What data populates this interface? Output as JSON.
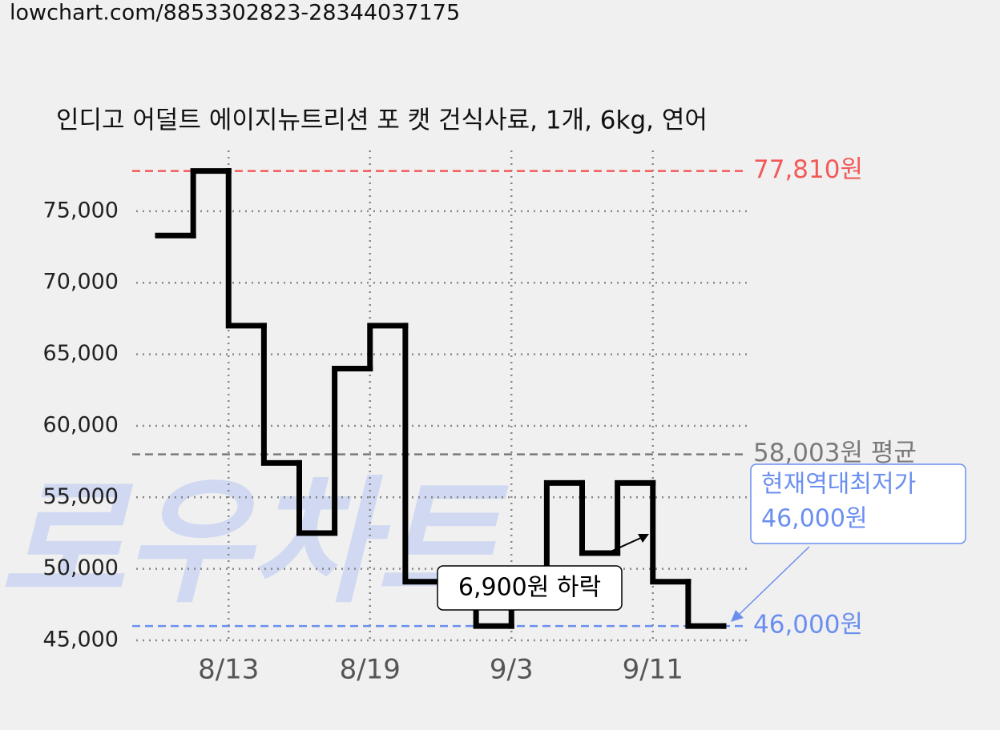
{
  "source": "lowchart.com/8853302823-28344037175",
  "chart_data": {
    "type": "step",
    "title": "인디고 어덜트 에이지뉴트리션 포 캣 건식사료, 1개, 6kg, 연어",
    "watermark": "로우차트",
    "categories": [
      null,
      null,
      "8/13",
      null,
      null,
      null,
      "8/19",
      null,
      null,
      null,
      "9/3",
      null,
      null,
      null,
      "9/11",
      null,
      null
    ],
    "series": [
      {
        "color": "#000000",
        "values": [
          73300,
          77810,
          67000,
          57400,
          52500,
          64000,
          67000,
          49100,
          49100,
          46000,
          49100,
          56000,
          51100,
          56000,
          49100,
          46000,
          46000
        ]
      }
    ],
    "ylim": [
      45000,
      79000
    ],
    "yticks": [
      {
        "value": 45000,
        "label": "45,000"
      },
      {
        "value": 50000,
        "label": "50,000"
      },
      {
        "value": 55000,
        "label": "55,000"
      },
      {
        "value": 60000,
        "label": "60,000"
      },
      {
        "value": 65000,
        "label": "65,000"
      },
      {
        "value": 70000,
        "label": "70,000"
      },
      {
        "value": 75000,
        "label": "75,000"
      }
    ],
    "grid": true,
    "reference_lines": [
      {
        "label": "77,810원",
        "value": 77810,
        "color": "#f25a5a"
      },
      {
        "label": "58,003원 평균",
        "value": 58003,
        "color": "#7a7a7a"
      },
      {
        "label": "46,000원",
        "value": 46000,
        "color": "#6b8ff0"
      }
    ],
    "annotations": [
      {
        "lines": [
          "6,900원 하락"
        ]
      },
      {
        "lines": [
          "현재역대최저가",
          "46,000원"
        ]
      }
    ]
  }
}
